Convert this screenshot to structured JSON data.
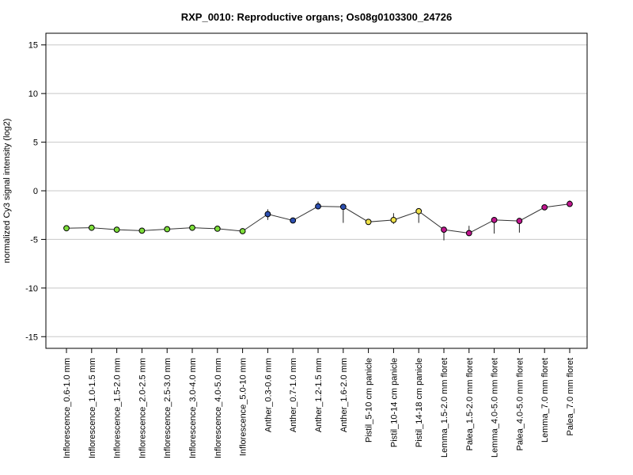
{
  "chart_data": {
    "type": "line",
    "title": "RXP_0010: Reproductive organs; Os08g0103300_24726",
    "ylabel": "normalized Cy3 signal intensity (log2)",
    "xlabel": "",
    "ylim": [
      -16.2,
      16.2
    ],
    "yticks": [
      -15,
      -10,
      -5,
      0,
      5,
      10,
      15
    ],
    "grid": true,
    "categories": [
      "Inflorescence_0.6-1.0 mm",
      "Inflorescence_1.0-1.5 mm",
      "Inflorescence_1.5-2.0 mm",
      "Inflorescence_2.0-2.5 mm",
      "Inflorescence_2.5-3.0 mm",
      "Inflorescence_3.0-4.0 mm",
      "Inflorescence_4.0-5.0 mm",
      "Inflorescence_5.0-10 mm",
      "Anther_0.3-0.6 mm",
      "Anther_0.7-1.0 mm",
      "Anther_1.2-1.5 mm",
      "Anther_1.6-2.0 mm",
      "Pistil_5-10 cm panicle",
      "Pistil_10-14 cm panicle",
      "Pistil_14-18 cm panicle",
      "Lemma_1.5-2.0 mm floret",
      "Palea_1.5-2.0 mm floret",
      "Lemma_4.0-5.0 mm floret",
      "Palea_4.0-5.0 mm floret",
      "Lemma_7.0 mm floret",
      "Palea_7.0 mm floret"
    ],
    "values": [
      -3.85,
      -3.8,
      -4.0,
      -4.1,
      -3.95,
      -3.8,
      -3.9,
      -4.15,
      -2.4,
      -3.05,
      -1.6,
      -1.65,
      -3.2,
      -3.0,
      -2.1,
      -4.0,
      -4.35,
      -3.0,
      -3.1,
      -1.7,
      -1.35
    ],
    "error_low": [
      -3.85,
      -3.8,
      -4.0,
      -4.1,
      -3.95,
      -3.8,
      -3.9,
      -4.15,
      -3.0,
      -3.05,
      -1.9,
      -3.3,
      -3.5,
      -3.4,
      -3.3,
      -5.1,
      -4.5,
      -4.4,
      -4.3,
      -1.8,
      -1.5
    ],
    "error_high": [
      -3.85,
      -3.8,
      -4.0,
      -4.1,
      -3.95,
      -3.8,
      -3.9,
      -4.15,
      -1.9,
      -3.05,
      -1.1,
      -1.65,
      -3.0,
      -2.3,
      -2.0,
      -3.9,
      -3.6,
      -3.0,
      -2.9,
      -1.5,
      -1.0
    ],
    "colors": [
      "#7dde3a",
      "#7dde3a",
      "#7dde3a",
      "#7dde3a",
      "#7dde3a",
      "#7dde3a",
      "#7dde3a",
      "#7dde3a",
      "#2d4fb0",
      "#2d4fb0",
      "#2d4fb0",
      "#2d4fb0",
      "#f0e24a",
      "#f0e24a",
      "#f0e24a",
      "#c0168f",
      "#c0168f",
      "#c0168f",
      "#c0168f",
      "#c0168f",
      "#c0168f"
    ],
    "line_color": "#333333",
    "grid_color": "#c8c8c8"
  }
}
